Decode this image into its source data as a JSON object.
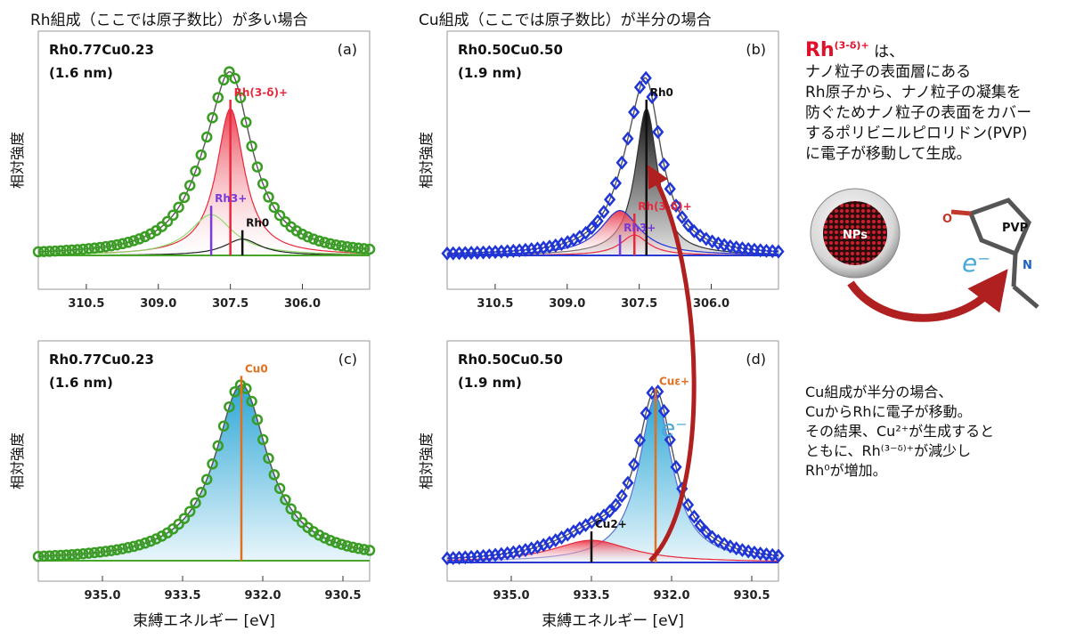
{
  "headings": {
    "left_column": "Rh組成（ここでは原子数比）が多い場合",
    "right_column": "Cu組成（ここでは原子数比）が半分の場合"
  },
  "notes": {
    "note1_species": "Rh",
    "note1_superscript": "(3-δ)+",
    "note1_particle": "は、",
    "note1_lines": [
      "ナノ粒子の表面層にある",
      "Rh原子から、ナノ粒子の凝集を",
      "防ぐためナノ粒子の表面をカバー",
      "するポリビニルピロリドン(PVP)",
      "に電子が移動して生成。"
    ],
    "note2_lines": [
      "Cu組成が半分の場合、",
      "CuからRhに電子が移動。",
      "その結果、Cu²⁺が生成すると",
      "ともに、Rh⁽³⁻ᵟ⁾⁺が減少し",
      "Rh⁰が増加。"
    ]
  },
  "illustration": {
    "nps_label": "NPs",
    "pvp_label": "PVP",
    "o_label": "O",
    "n_label": "N",
    "electron_label": "e⁻",
    "electron_label_d": "e⁻"
  },
  "chart_data": [
    {
      "panel": "(a)",
      "type": "scatter",
      "sample": "Rh0.77Cu0.23",
      "size": "(1.6 nm)",
      "xlabel": "",
      "ylabel": "相対強度",
      "xlim": [
        311.5,
        304.6
      ],
      "xticks": [
        310.5,
        309.0,
        307.5,
        306.0
      ],
      "ylim": [
        0,
        1.1
      ],
      "series": [
        {
          "name": "data",
          "peaks": [
            {
              "c": 307.5,
              "h": 0.73,
              "w": 0.5
            },
            {
              "c": 308.0,
              "h": 0.18,
              "w": 0.6
            },
            {
              "c": 307.2,
              "h": 0.08,
              "w": 0.6
            }
          ],
          "x_range": [
            311.5,
            304.6
          ],
          "n": 60
        },
        {
          "name": "Rh(3-δ)+ component",
          "c": 307.5,
          "h": 0.72,
          "w": 0.35
        },
        {
          "name": "Rh3+ component",
          "c": 307.9,
          "h": 0.2,
          "w": 0.55
        },
        {
          "name": "Rh0 component",
          "c": 307.25,
          "h": 0.08,
          "w": 0.45
        }
      ],
      "annotations": [
        {
          "label": "Rh(3-δ)+",
          "x": 307.5
        },
        {
          "label": "Rh3+",
          "x": 307.9
        },
        {
          "label": "Rh0",
          "x": 307.25
        }
      ]
    },
    {
      "panel": "(b)",
      "type": "scatter",
      "sample": "Rh0.50Cu0.50",
      "size": "(1.9 nm)",
      "xlabel": "",
      "ylabel": "相対強度",
      "xlim": [
        311.5,
        304.6
      ],
      "xticks": [
        310.5,
        309.0,
        307.5,
        306.0
      ],
      "ylim": [
        0,
        1.1
      ],
      "series": [
        {
          "name": "data",
          "peaks": [
            {
              "c": 307.35,
              "h": 0.72,
              "w": 0.38
            },
            {
              "c": 307.7,
              "h": 0.22,
              "w": 0.5
            }
          ],
          "x_range": [
            311.5,
            304.6
          ],
          "n": 56
        },
        {
          "name": "Rh0 component",
          "c": 307.35,
          "h": 0.72,
          "w": 0.28
        },
        {
          "name": "Rh3+ component",
          "c": 307.9,
          "h": 0.22,
          "w": 0.5
        },
        {
          "name": "Rh(3-δ)+ component",
          "c": 307.6,
          "h": 0.1,
          "w": 0.35
        }
      ],
      "annotations": [
        {
          "label": "Rh0",
          "x": 307.35
        },
        {
          "label": "Rh(3-δ)+",
          "x": 307.6
        },
        {
          "label": "Rh3+",
          "x": 307.9
        }
      ]
    },
    {
      "panel": "(c)",
      "type": "scatter",
      "sample": "Rh0.77Cu0.23",
      "size": "(1.6 nm)",
      "xlabel": "束縛エネルギー [eV]",
      "ylabel": "相対強度",
      "xlim": [
        936.2,
        930.0
      ],
      "xticks": [
        935.0,
        933.5,
        932.0,
        930.5
      ],
      "ylim": [
        0,
        1.1
      ],
      "series": [
        {
          "name": "data",
          "peaks": [
            {
              "c": 932.4,
              "h": 0.88,
              "w": 0.6
            }
          ],
          "x_range": [
            936.2,
            930.0
          ],
          "n": 60
        },
        {
          "name": "Cu0 component",
          "c": 932.4,
          "h": 0.88,
          "w": 0.6
        }
      ],
      "annotations": [
        {
          "label": "Cu0",
          "x": 932.4
        }
      ]
    },
    {
      "panel": "(d)",
      "type": "scatter",
      "sample": "Rh0.50Cu0.50",
      "size": "(1.9 nm)",
      "xlabel": "束縛エネルギー [eV]",
      "ylabel": "相対強度",
      "xlim": [
        936.2,
        930.0
      ],
      "xticks": [
        935.0,
        933.5,
        932.0,
        930.5
      ],
      "ylim": [
        0,
        1.1
      ],
      "series": [
        {
          "name": "data",
          "peaks": [
            {
              "c": 932.3,
              "h": 0.82,
              "w": 0.42
            },
            {
              "c": 933.5,
              "h": 0.11,
              "w": 0.9
            }
          ],
          "x_range": [
            936.2,
            930.0
          ],
          "n": 56
        },
        {
          "name": "Cuε+ component",
          "c": 932.3,
          "h": 0.82,
          "w": 0.38
        },
        {
          "name": "Cu2+ component",
          "c": 933.5,
          "h": 0.11,
          "w": 0.9
        }
      ],
      "annotations": [
        {
          "label": "Cuε+",
          "x": 932.3
        },
        {
          "label": "Cu2+",
          "x": 933.5
        }
      ]
    }
  ]
}
